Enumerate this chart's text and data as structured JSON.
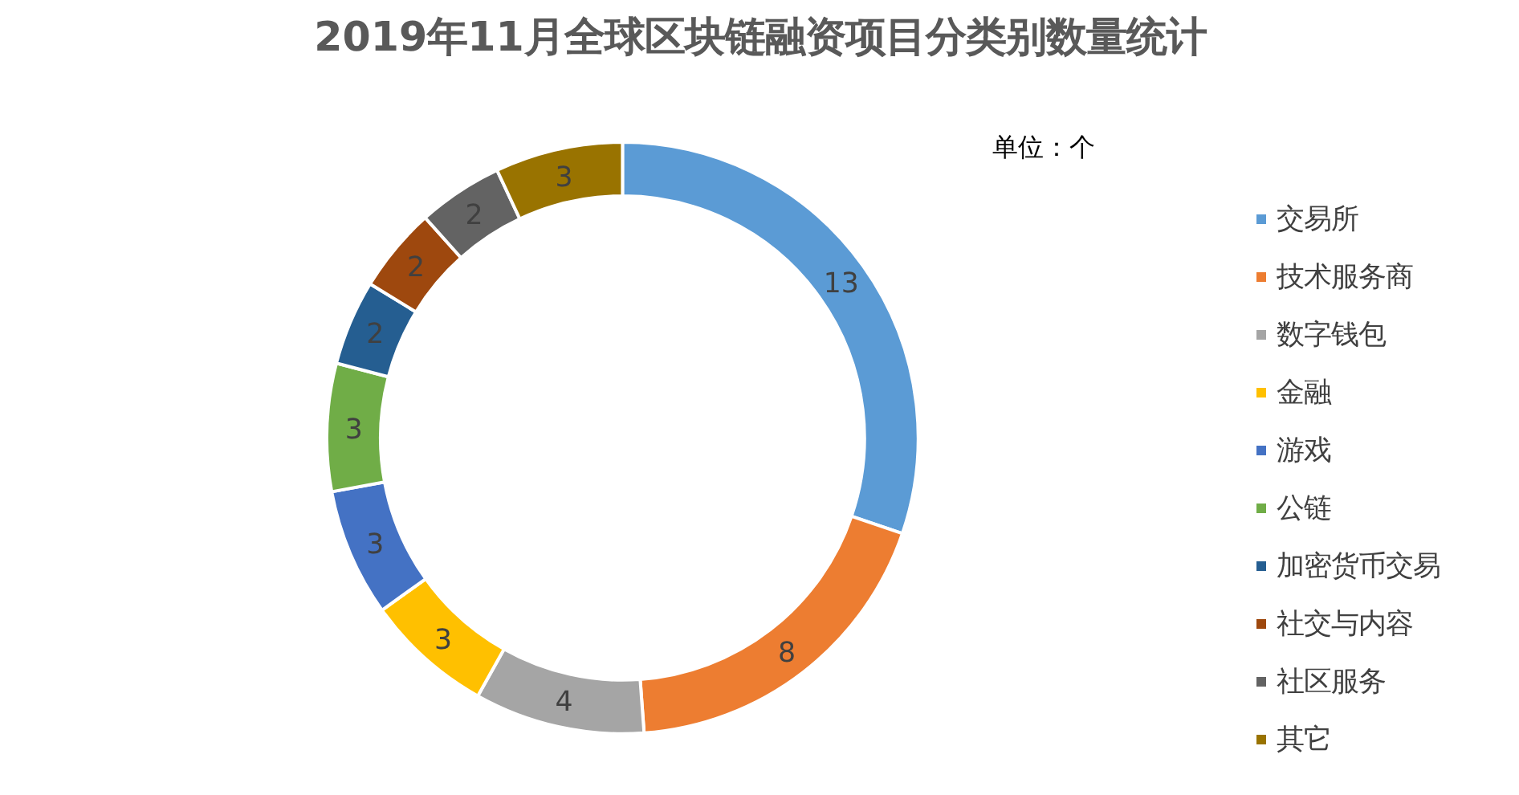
{
  "chart_data": {
    "type": "donut",
    "title": "2019年11月全球区块链融资项目分类别数量统计",
    "categories": [
      "交易所",
      "技术服务商",
      "数字钱包",
      "金融",
      "游戏",
      "公链",
      "加密货币交易",
      "社交与内容",
      "社区服务",
      "其它"
    ],
    "values": [
      13,
      8,
      4,
      3,
      3,
      3,
      2,
      2,
      2,
      3
    ],
    "colors": [
      "#5b9bd5",
      "#ed7d31",
      "#a5a5a5",
      "#ffc000",
      "#4472c4",
      "#70ad47",
      "#255e91",
      "#9e480e",
      "#636363",
      "#997300"
    ],
    "annotations": [
      "单位：个"
    ],
    "data_labels": true,
    "legend": "right"
  }
}
